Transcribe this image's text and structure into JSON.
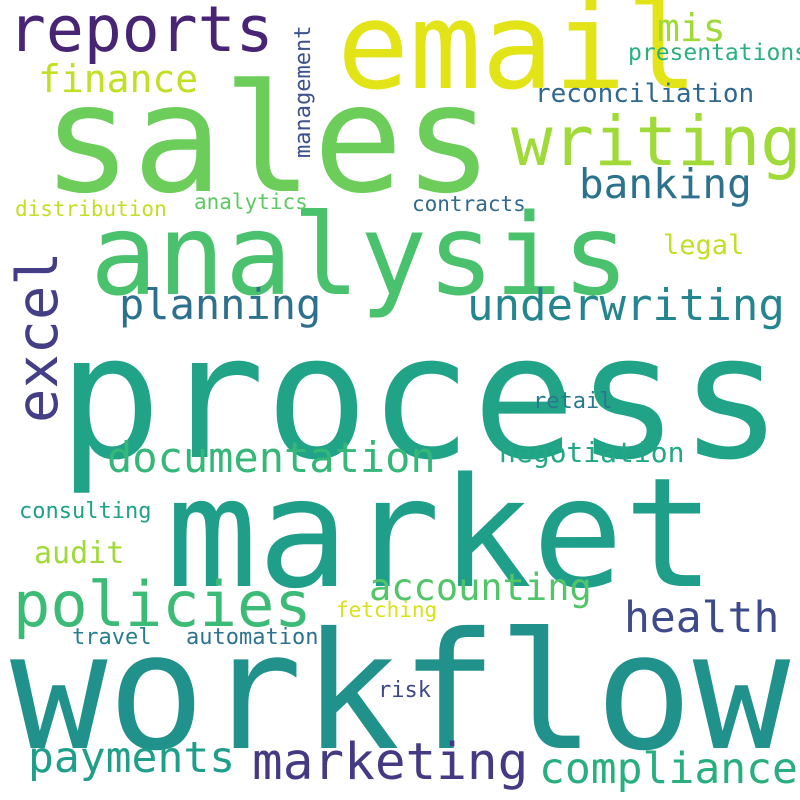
{
  "words": [
    {
      "id": "workflow",
      "text": "workflow",
      "color": "#21918c"
    },
    {
      "id": "process",
      "text": "process",
      "color": "#20a386"
    },
    {
      "id": "market",
      "text": "market",
      "color": "#1f9e89"
    },
    {
      "id": "sales",
      "text": "sales",
      "color": "#6ccd5a"
    },
    {
      "id": "analysis",
      "text": "analysis",
      "color": "#4ac16d"
    },
    {
      "id": "email",
      "text": "email",
      "color": "#e2e418"
    },
    {
      "id": "reports",
      "text": "reports",
      "color": "#482475"
    },
    {
      "id": "writing",
      "text": "writing",
      "color": "#a0da39"
    },
    {
      "id": "excel",
      "text": "excel",
      "color": "#433e85"
    },
    {
      "id": "policies",
      "text": "policies",
      "color": "#3bbb75"
    },
    {
      "id": "finance",
      "text": "finance",
      "color": "#c2df23"
    },
    {
      "id": "mis",
      "text": "mis",
      "color": "#a0da39"
    },
    {
      "id": "presentations",
      "text": "presentations",
      "color": "#2ab07f"
    },
    {
      "id": "management",
      "text": "management",
      "color": "#3b528b"
    },
    {
      "id": "reconciliation",
      "text": "reconciliation",
      "color": "#31688e"
    },
    {
      "id": "banking",
      "text": "banking",
      "color": "#2c728e"
    },
    {
      "id": "distribution",
      "text": "distribution",
      "color": "#c2df23"
    },
    {
      "id": "analytics",
      "text": "analytics",
      "color": "#5ec962"
    },
    {
      "id": "contracts",
      "text": "contracts",
      "color": "#31688e"
    },
    {
      "id": "legal",
      "text": "legal",
      "color": "#c2df23"
    },
    {
      "id": "planning",
      "text": "planning",
      "color": "#2d708e"
    },
    {
      "id": "underwriting",
      "text": "underwriting",
      "color": "#25858e"
    },
    {
      "id": "documentation",
      "text": "documentation",
      "color": "#35b779"
    },
    {
      "id": "negotiation",
      "text": "negotiation",
      "color": "#22a884"
    },
    {
      "id": "retail",
      "text": "retail",
      "color": "#2a788e"
    },
    {
      "id": "consulting",
      "text": "consulting",
      "color": "#1fa187"
    },
    {
      "id": "audit",
      "text": "audit",
      "color": "#a0da39"
    },
    {
      "id": "accounting",
      "text": "accounting",
      "color": "#52c569"
    },
    {
      "id": "health",
      "text": "health",
      "color": "#3e4a89"
    },
    {
      "id": "fetching",
      "text": "fetching",
      "color": "#d8e219"
    },
    {
      "id": "travel",
      "text": "travel",
      "color": "#277f8e"
    },
    {
      "id": "automation",
      "text": "automation",
      "color": "#2c728e"
    },
    {
      "id": "risk",
      "text": "risk",
      "color": "#3e4989"
    },
    {
      "id": "payments",
      "text": "payments",
      "color": "#1f9e89"
    },
    {
      "id": "marketing",
      "text": "marketing",
      "color": "#443983"
    },
    {
      "id": "compliance",
      "text": "compliance",
      "color": "#29af7f"
    }
  ]
}
